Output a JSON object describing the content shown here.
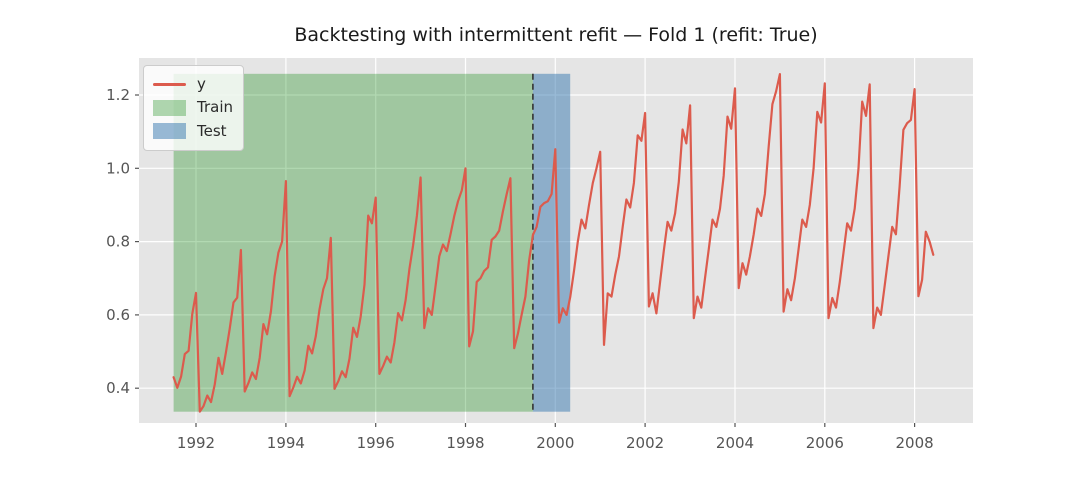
{
  "title": "Backtesting with intermittent refit — Fold 1 (refit: True)",
  "legend": {
    "items": [
      {
        "label": "y",
        "swatch": "line-swatch",
        "color": "#dc5b4d"
      },
      {
        "label": "Train",
        "swatch": "train-swatch",
        "color": "rgba(0,128,0,0.30)"
      },
      {
        "label": "Test",
        "swatch": "test-swatch",
        "color": "rgba(70,130,180,0.55)"
      }
    ]
  },
  "chart_data": {
    "type": "line",
    "title": "Backtesting with intermittent refit — Fold 1 (refit: True)",
    "xlabel": "",
    "ylabel": "",
    "x_unit": "year (monthly data)",
    "x_start": 1991.5,
    "x_step": 0.0833333,
    "xlim": [
      1990.73,
      2009.3
    ],
    "ylim": [
      0.305,
      1.301
    ],
    "x_ticks": [
      1992,
      1994,
      1996,
      1998,
      2000,
      2002,
      2004,
      2006,
      2008
    ],
    "y_ticks": [
      0.4,
      0.6,
      0.8,
      1.0,
      1.2
    ],
    "grid": true,
    "legend_position": "upper left",
    "background": "#e5e5e5",
    "gridline_color": "#ffffff",
    "tick_label_color": "#555555",
    "title_color": "#1a1a1a",
    "series": [
      {
        "name": "y",
        "color": "#dc5b4d",
        "values": [
          0.43,
          0.401,
          0.432,
          0.493,
          0.502,
          0.603,
          0.66,
          0.336,
          0.351,
          0.38,
          0.362,
          0.411,
          0.483,
          0.439,
          0.499,
          0.562,
          0.634,
          0.647,
          0.777,
          0.391,
          0.414,
          0.443,
          0.425,
          0.483,
          0.575,
          0.547,
          0.609,
          0.705,
          0.77,
          0.8,
          0.965,
          0.378,
          0.402,
          0.431,
          0.413,
          0.448,
          0.516,
          0.495,
          0.542,
          0.615,
          0.67,
          0.7,
          0.81,
          0.398,
          0.419,
          0.446,
          0.43,
          0.481,
          0.565,
          0.54,
          0.596,
          0.683,
          0.871,
          0.85,
          0.92,
          0.439,
          0.461,
          0.486,
          0.47,
          0.525,
          0.605,
          0.585,
          0.64,
          0.725,
          0.79,
          0.87,
          0.975,
          0.564,
          0.618,
          0.6,
          0.68,
          0.76,
          0.792,
          0.774,
          0.82,
          0.87,
          0.91,
          0.94,
          1.0,
          0.514,
          0.555,
          0.69,
          0.7,
          0.72,
          0.73,
          0.805,
          0.814,
          0.83,
          0.882,
          0.93,
          0.973,
          0.509,
          0.549,
          0.6,
          0.65,
          0.748,
          0.818,
          0.84,
          0.895,
          0.905,
          0.91,
          0.93,
          1.052,
          0.579,
          0.618,
          0.6,
          0.65,
          0.72,
          0.8,
          0.86,
          0.836,
          0.9,
          0.96,
          1.0,
          1.045,
          0.518,
          0.659,
          0.65,
          0.709,
          0.76,
          0.84,
          0.915,
          0.893,
          0.96,
          1.09,
          1.075,
          1.151,
          0.623,
          0.659,
          0.604,
          0.69,
          0.777,
          0.854,
          0.83,
          0.877,
          0.963,
          1.106,
          1.068,
          1.172,
          0.591,
          0.65,
          0.62,
          0.7,
          0.78,
          0.86,
          0.84,
          0.89,
          0.98,
          1.141,
          1.108,
          1.218,
          0.673,
          0.741,
          0.71,
          0.76,
          0.82,
          0.89,
          0.87,
          0.93,
          1.06,
          1.175,
          1.21,
          1.257,
          0.609,
          0.67,
          0.64,
          0.7,
          0.78,
          0.86,
          0.84,
          0.9,
          1.0,
          1.154,
          1.125,
          1.232,
          0.591,
          0.646,
          0.62,
          0.69,
          0.77,
          0.85,
          0.83,
          0.89,
          1.0,
          1.182,
          1.143,
          1.229,
          0.564,
          0.62,
          0.6,
          0.68,
          0.76,
          0.84,
          0.82,
          0.95,
          1.105,
          1.123,
          1.132,
          1.216,
          0.651,
          0.696,
          0.827,
          0.8,
          0.764
        ]
      }
    ],
    "regions": [
      {
        "name": "Train",
        "from": 1991.5,
        "to": 1999.5,
        "color": "rgba(0,128,0,0.30)"
      },
      {
        "name": "Test",
        "from": 1999.5,
        "to": 2000.33,
        "color": "rgba(70,130,180,0.55)"
      }
    ],
    "region_y_range": [
      0.336,
      1.258
    ],
    "vline": {
      "x": 1999.5,
      "style": "dashed",
      "color": "#333333"
    }
  }
}
